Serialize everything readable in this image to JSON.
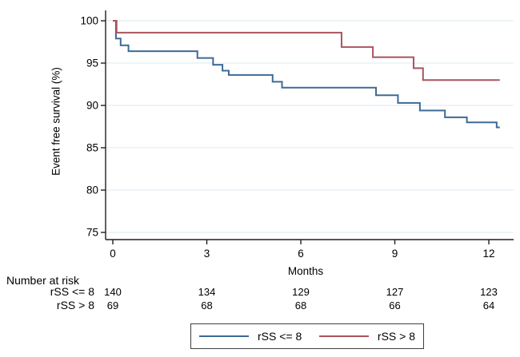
{
  "colors": {
    "background": "#ffffff",
    "axis": "#1f1f1f",
    "grid": "#e8f0f5",
    "text": "#000000",
    "blue_series": "#3d6a96",
    "red_series": "#a9545c"
  },
  "chart_data": {
    "type": "line",
    "subtype": "kaplan-meier-step",
    "title": "",
    "xlabel": "Months",
    "ylabel": "Event free survival (%)",
    "xlim": [
      0,
      12.35
    ],
    "ylim": [
      75,
      100
    ],
    "xticks": [
      0,
      3,
      6,
      9,
      12
    ],
    "yticks": [
      75,
      80,
      85,
      90,
      95,
      100
    ],
    "grid": true,
    "legend_position": "bottom-box",
    "series": [
      {
        "name": "rSS <= 8",
        "color": "#3d6a96",
        "points": [
          [
            0,
            100
          ],
          [
            0.1,
            97.9
          ],
          [
            0.25,
            97.1
          ],
          [
            0.5,
            96.4
          ],
          [
            2.7,
            95.6
          ],
          [
            3.2,
            94.8
          ],
          [
            3.5,
            94.1
          ],
          [
            3.7,
            93.6
          ],
          [
            5.1,
            92.8
          ],
          [
            5.4,
            92.1
          ],
          [
            8.4,
            91.2
          ],
          [
            9.1,
            90.3
          ],
          [
            9.8,
            89.4
          ],
          [
            10.6,
            88.6
          ],
          [
            11.3,
            88.0
          ],
          [
            12.25,
            87.4
          ]
        ],
        "end_x": 12.35
      },
      {
        "name": "rSS > 8",
        "color": "#a9545c",
        "points": [
          [
            0,
            100
          ],
          [
            0.12,
            98.6
          ],
          [
            7.3,
            96.9
          ],
          [
            8.3,
            95.7
          ],
          [
            9.6,
            94.4
          ],
          [
            9.9,
            93.0
          ]
        ],
        "end_x": 12.35
      }
    ],
    "at_risk": {
      "heading": "Number at risk",
      "time_points": [
        0,
        3,
        6,
        9,
        12
      ],
      "rows": [
        {
          "label": "rSS <= 8",
          "values": [
            140,
            134,
            129,
            127,
            123
          ]
        },
        {
          "label": "rSS > 8",
          "values": [
            69,
            68,
            68,
            66,
            64
          ]
        }
      ]
    }
  }
}
